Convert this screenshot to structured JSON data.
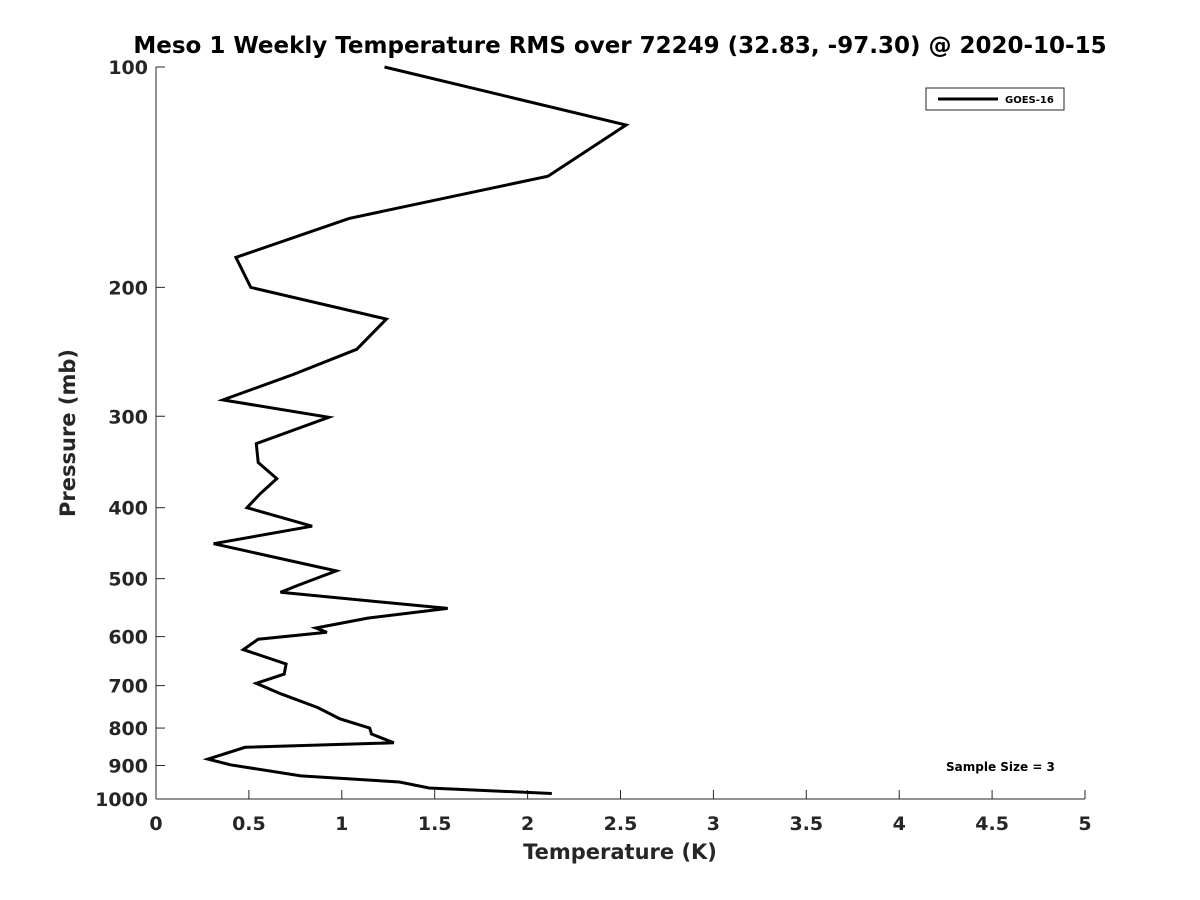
{
  "chart_data": {
    "type": "line",
    "title": "Meso 1 Weekly Temperature RMS over 72249 (32.83, -97.30) @ 2020-10-15",
    "xlabel": "Temperature (K)",
    "ylabel": "Pressure (mb)",
    "xlim": [
      0,
      5
    ],
    "ylim": [
      100,
      1000
    ],
    "y_scale": "log",
    "y_reversed": true,
    "x_ticks": [
      "0",
      "0.5",
      "1",
      "1.5",
      "2",
      "2.5",
      "3",
      "3.5",
      "4",
      "4.5",
      "5"
    ],
    "y_ticks": [
      "100",
      "200",
      "300",
      "400",
      "500",
      "600",
      "700",
      "800",
      "900",
      "1000"
    ],
    "grid": false,
    "legend_position": "top-right",
    "annotation": "Sample Size = 3",
    "series": [
      {
        "name": "GOES-16",
        "color": "#000000",
        "x": [
          1.23,
          2.53,
          2.11,
          1.04,
          0.43,
          0.51,
          1.24,
          1.08,
          0.74,
          0.36,
          0.93,
          0.54,
          0.55,
          0.65,
          0.56,
          0.49,
          0.84,
          0.31,
          0.97,
          0.77,
          0.67,
          1.57,
          1.14,
          0.86,
          0.92,
          0.55,
          0.47,
          0.7,
          0.69,
          0.54,
          0.67,
          0.87,
          0.99,
          1.15,
          1.16,
          1.28,
          0.48,
          0.28,
          0.4,
          0.78,
          1.31,
          1.47,
          2.13
        ],
        "y": [
          100,
          120,
          141,
          161,
          182,
          200,
          221,
          243,
          263,
          285,
          301,
          327,
          347,
          365,
          383,
          400,
          424,
          448,
          488,
          510,
          522,
          549,
          566,
          584,
          592,
          605,
          625,
          654,
          675,
          695,
          718,
          750,
          777,
          800,
          815,
          838,
          850,
          882,
          898,
          930,
          948,
          966,
          983
        ]
      }
    ]
  }
}
